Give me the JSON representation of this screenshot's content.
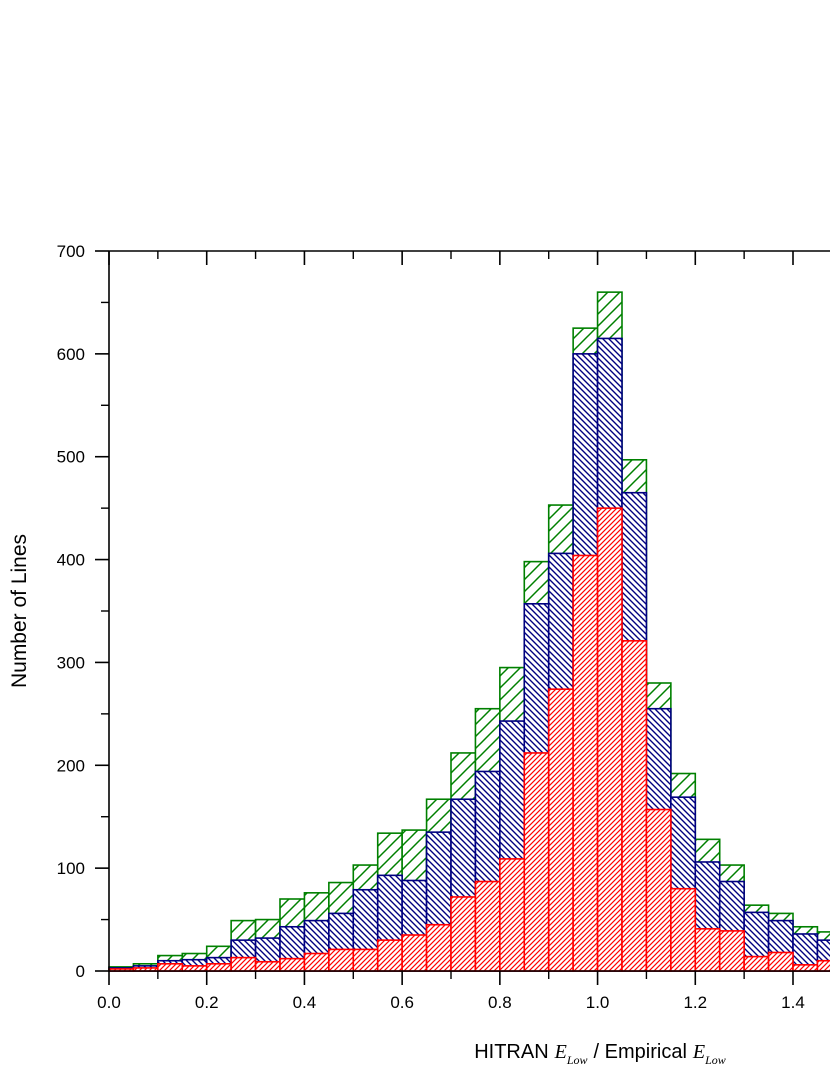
{
  "chart_data": {
    "type": "histogram",
    "y_label": "Number of Lines",
    "x_label": [
      "HITRAN",
      "E",
      "Low",
      "/ Empirical",
      "E",
      "Low"
    ],
    "bins": [
      0,
      0.05,
      0.1,
      0.15,
      0.2,
      0.25,
      0.3,
      0.35,
      0.4,
      0.45,
      0.5,
      0.55,
      0.6,
      0.65,
      0.7,
      0.75,
      0.8,
      0.85,
      0.9,
      0.95,
      1.0,
      1.05,
      1.1,
      1.15,
      1.2,
      1.25,
      1.3,
      1.35,
      1.4,
      1.45,
      1.5
    ],
    "series": [
      {
        "color": "#008000",
        "hatch": "sparse-forward",
        "values": [
          4,
          7,
          15,
          17,
          24,
          49,
          50,
          70,
          76,
          86,
          103,
          134,
          137,
          167,
          212,
          255,
          295,
          398,
          453,
          625,
          660,
          497,
          280,
          192,
          128,
          103,
          64,
          56,
          43,
          38
        ]
      },
      {
        "color": "#000080",
        "hatch": "backward",
        "values": [
          3,
          5,
          10,
          11,
          13,
          30,
          32,
          43,
          49,
          56,
          79,
          93,
          88,
          135,
          167,
          194,
          243,
          357,
          406,
          600,
          615,
          465,
          255,
          169,
          106,
          87,
          57,
          49,
          36,
          30
        ]
      },
      {
        "color": "#ff0000",
        "hatch": "dense-forward",
        "values": [
          2,
          3,
          7,
          5,
          7,
          13,
          9,
          12,
          17,
          21,
          21,
          30,
          35,
          45,
          72,
          87,
          109,
          212,
          274,
          404,
          450,
          321,
          157,
          80,
          41,
          39,
          14,
          18,
          6,
          10
        ]
      }
    ],
    "xlim": [
      0,
      1.475
    ],
    "ylim": [
      0,
      700
    ],
    "xticks": [
      {
        "value": 0,
        "label": "0.0"
      },
      0.2,
      0.4,
      0.6,
      0.8,
      {
        "value": 1.0,
        "label": "1.0"
      },
      1.2,
      1.4
    ],
    "xminorticks": [
      0.1,
      0.3,
      0.5,
      0.7,
      0.9,
      1.1,
      1.3
    ],
    "yticks": [
      0,
      100,
      200,
      300,
      400,
      500,
      600,
      700
    ],
    "yminorticks": [
      50,
      150,
      250,
      350,
      450,
      550,
      650
    ]
  }
}
